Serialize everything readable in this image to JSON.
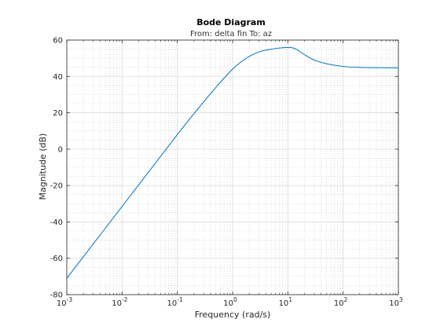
{
  "chart_data": {
    "type": "line",
    "title": "Bode Diagram",
    "subtitle": "From: delta fin  To: az",
    "xlabel": "Frequency  (rad/s)",
    "ylabel": "Magnitude (dB)",
    "xscale": "log",
    "xlim": [
      0.001,
      1000
    ],
    "ylim": [
      -80,
      60
    ],
    "grid": true,
    "x_ticks": [
      {
        "value": 0.001,
        "base": "10",
        "exp": "-3"
      },
      {
        "value": 0.01,
        "base": "10",
        "exp": "-2"
      },
      {
        "value": 0.1,
        "base": "10",
        "exp": "-1"
      },
      {
        "value": 1,
        "base": "10",
        "exp": "0"
      },
      {
        "value": 10,
        "base": "10",
        "exp": "1"
      },
      {
        "value": 100,
        "base": "10",
        "exp": "2"
      },
      {
        "value": 1000,
        "base": "10",
        "exp": "3"
      }
    ],
    "y_ticks": [
      {
        "value": -80,
        "label": "-80"
      },
      {
        "value": -60,
        "label": "-60"
      },
      {
        "value": -40,
        "label": "-40"
      },
      {
        "value": -20,
        "label": "-20"
      },
      {
        "value": 0,
        "label": "0"
      },
      {
        "value": 20,
        "label": "20"
      },
      {
        "value": 40,
        "label": "40"
      },
      {
        "value": 60,
        "label": "60"
      }
    ],
    "series": [
      {
        "color": "#0072bd",
        "x": [
          0.001,
          0.01,
          0.1,
          0.2,
          0.5,
          1,
          1.5,
          2,
          3,
          5,
          8,
          12,
          15,
          20,
          30,
          50,
          100,
          200,
          500,
          1000
        ],
        "y": [
          -71,
          -31.5,
          8,
          19.5,
          34,
          44,
          48.5,
          51,
          53.5,
          55,
          55.8,
          55.8,
          54.5,
          52,
          49,
          47,
          45.5,
          45,
          44.8,
          44.8
        ]
      }
    ]
  }
}
